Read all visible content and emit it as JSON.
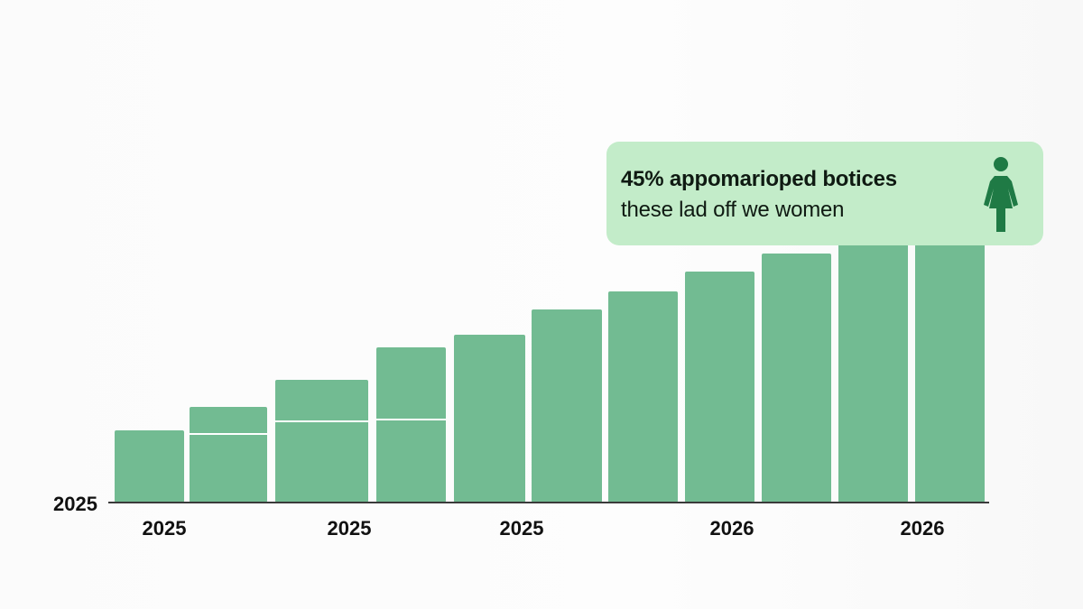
{
  "chart_data": {
    "type": "bar",
    "values": [
      80,
      106,
      136,
      172,
      186,
      214,
      234,
      256,
      276,
      290,
      290
    ],
    "inner_dividers": [
      null,
      76,
      90,
      92,
      null,
      null,
      null,
      null,
      null,
      null,
      null
    ],
    "ylim": [
      0,
      290
    ],
    "x_tick_labels": [
      "2025",
      "2025",
      "2025",
      "2026",
      "2026"
    ],
    "y_tick_labels": [
      "2025"
    ],
    "grid": false,
    "legend": "none",
    "bar_color": "#72bb92"
  },
  "callout": {
    "line1": "45% appomarioped botices",
    "line2": "these lad off we women",
    "icon": "woman-icon",
    "background": "#c3ecc9",
    "icon_color": "#1f7a45"
  }
}
